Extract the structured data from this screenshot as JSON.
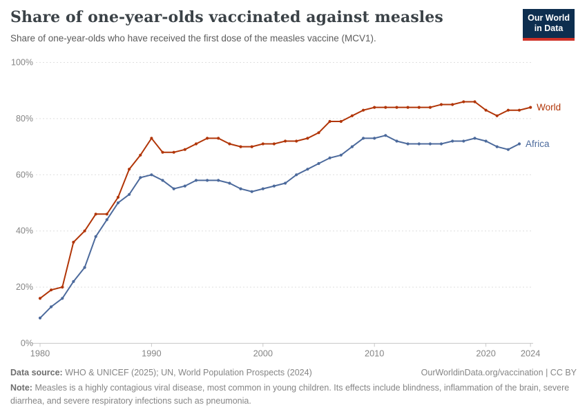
{
  "header": {
    "title": "Share of one-year-olds vaccinated against measles",
    "subtitle": "Share of one-year-olds who have received the first dose of the measles vaccine (MCV1).",
    "logo_line1": "Our World",
    "logo_line2": "in Data"
  },
  "chart_data": {
    "type": "line",
    "title": "Share of one-year-olds vaccinated against measles",
    "xlabel": "",
    "ylabel": "",
    "xlim": [
      1980,
      2024
    ],
    "ylim": [
      0,
      100
    ],
    "x_ticks": [
      1980,
      1990,
      2000,
      2010,
      2020,
      2024
    ],
    "y_ticks": [
      0,
      20,
      40,
      60,
      80,
      100
    ],
    "y_tick_suffix": "%",
    "grid": "horizontal-dashed",
    "legend_position": "line-end-labels",
    "colors": {
      "grid": "#dedede",
      "axis": "#c8c8c8",
      "tick_text": "#858585"
    },
    "series": [
      {
        "name": "World",
        "color": "#b13507",
        "start_year": 1980,
        "values": [
          16,
          19,
          20,
          36,
          40,
          46,
          46,
          52,
          62,
          67,
          73,
          68,
          68,
          69,
          71,
          73,
          73,
          71,
          70,
          70,
          71,
          71,
          72,
          72,
          73,
          75,
          79,
          79,
          81,
          83,
          84,
          84,
          84,
          84,
          84,
          84,
          85,
          85,
          86,
          86,
          83,
          81,
          83,
          83,
          84
        ]
      },
      {
        "name": "Africa",
        "color": "#4c6a9c",
        "start_year": 1980,
        "values": [
          9,
          13,
          16,
          22,
          27,
          38,
          44,
          50,
          53,
          59,
          60,
          58,
          55,
          56,
          58,
          58,
          58,
          57,
          55,
          54,
          55,
          56,
          57,
          60,
          62,
          64,
          66,
          67,
          70,
          73,
          73,
          74,
          72,
          71,
          71,
          71,
          71,
          72,
          72,
          73,
          72,
          70,
          69,
          71
        ]
      }
    ]
  },
  "footer": {
    "source_label": "Data source:",
    "source_text": "WHO & UNICEF (2025); UN, World Population Prospects (2024)",
    "link_text": "OurWorldinData.org/vaccination",
    "separator": "|",
    "license_text": "CC BY",
    "note_label": "Note:",
    "note_text": "Measles is a highly contagious viral disease, most common in young children. Its effects include blindness, inflammation of the brain, severe diarrhea, and severe respiratory infections such as pneumonia."
  }
}
